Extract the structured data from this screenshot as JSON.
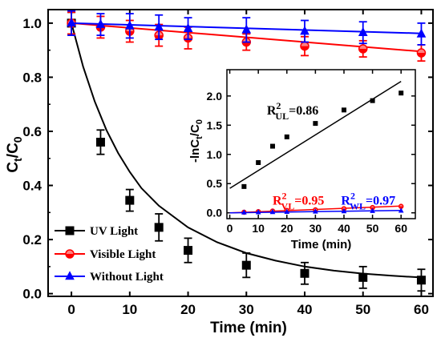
{
  "chart_data": [
    {
      "type": "scatter",
      "xlabel": "Time (min)",
      "ylabel": "C_t/C_0",
      "ylabel_parts": {
        "main": "C",
        "sub1": "t",
        "slash": "/C",
        "sub2": "0"
      },
      "xlim": [
        -4,
        62
      ],
      "ylim": [
        -0.01,
        1.05
      ],
      "xticks": [
        0,
        10,
        20,
        30,
        40,
        50,
        60
      ],
      "yticks": [
        0.0,
        0.2,
        0.4,
        0.6,
        0.8,
        1.0
      ],
      "xtick_labels": [
        "0",
        "10",
        "20",
        "30",
        "40",
        "50",
        "60"
      ],
      "ytick_labels": [
        "0.0",
        "0.2",
        "0.4",
        "0.6",
        "0.8",
        "1.0"
      ],
      "legend_position": "bottom-left",
      "series": [
        {
          "name": "UV Light",
          "color": "#000000",
          "marker": "square",
          "x": [
            0,
            5,
            10,
            15,
            20,
            30,
            40,
            50,
            60
          ],
          "y": [
            1.0,
            0.56,
            0.345,
            0.245,
            0.16,
            0.105,
            0.075,
            0.06,
            0.05
          ],
          "err": [
            0.04,
            0.045,
            0.04,
            0.05,
            0.045,
            0.045,
            0.04,
            0.04,
            0.04
          ],
          "fit": [
            [
              0,
              1.0
            ],
            [
              2,
              0.84
            ],
            [
              4,
              0.71
            ],
            [
              6,
              0.605
            ],
            [
              8,
              0.52
            ],
            [
              10,
              0.45
            ],
            [
              12,
              0.39
            ],
            [
              15,
              0.325
            ],
            [
              20,
              0.245
            ],
            [
              25,
              0.19
            ],
            [
              30,
              0.15
            ],
            [
              35,
              0.122
            ],
            [
              40,
              0.1
            ],
            [
              45,
              0.085
            ],
            [
              50,
              0.074
            ],
            [
              55,
              0.066
            ],
            [
              60,
              0.06
            ]
          ]
        },
        {
          "name": "Visible Light",
          "color": "#ff0000",
          "marker": "circle",
          "x": [
            0,
            5,
            10,
            15,
            20,
            30,
            40,
            50,
            60
          ],
          "y": [
            1.0,
            0.985,
            0.97,
            0.955,
            0.945,
            0.93,
            0.915,
            0.905,
            0.89
          ],
          "err": [
            0.04,
            0.04,
            0.04,
            0.04,
            0.04,
            0.03,
            0.035,
            0.03,
            0.03
          ],
          "fit": [
            [
              0,
              1.0
            ],
            [
              60,
              0.895
            ]
          ]
        },
        {
          "name": "Without Light",
          "color": "#0000ff",
          "marker": "triangle",
          "x": [
            0,
            5,
            10,
            15,
            20,
            30,
            40,
            50,
            60
          ],
          "y": [
            1.0,
            0.995,
            0.99,
            0.985,
            0.98,
            0.975,
            0.97,
            0.965,
            0.96
          ],
          "err": [
            0.045,
            0.04,
            0.045,
            0.045,
            0.04,
            0.045,
            0.04,
            0.04,
            0.04
          ],
          "fit": [
            [
              0,
              1.0
            ],
            [
              60,
              0.962
            ]
          ]
        }
      ]
    },
    {
      "type": "scatter",
      "role": "inset",
      "xlabel": "Time (min)",
      "ylabel": "-lnC_t/C_0",
      "ylabel_parts": {
        "main": "-lnC",
        "sub1": "t",
        "slash": "/C",
        "sub2": "0"
      },
      "xlim": [
        -1,
        65
      ],
      "ylim": [
        -0.1,
        2.45
      ],
      "xticks": [
        0,
        10,
        20,
        30,
        40,
        50,
        60
      ],
      "yticks": [
        0.0,
        0.5,
        1.0,
        1.5,
        2.0
      ],
      "xtick_labels": [
        "0",
        "10",
        "20",
        "30",
        "40",
        "50",
        "60"
      ],
      "ytick_labels": [
        "0.0",
        "0.5",
        "1.0",
        "1.5",
        "2.0"
      ],
      "annotations": [
        {
          "id": "ul",
          "base": "R",
          "sup": "2",
          "sub": "UL",
          "value": "=0.86",
          "color": "#000000",
          "x": 13,
          "y": 1.68
        },
        {
          "id": "vl",
          "base": "R",
          "sup": "2",
          "sub": "VL",
          "value": "=0.95",
          "color": "#ff0000",
          "x": 15,
          "y": 0.14
        },
        {
          "id": "wl",
          "base": "R",
          "sup": "2",
          "sub": "WL",
          "value": "=0.97",
          "color": "#0000ff",
          "x": 39,
          "y": 0.14
        }
      ],
      "series": [
        {
          "name": "UV Light",
          "color": "#000000",
          "marker": "square",
          "x": [
            5,
            10,
            15,
            20,
            30,
            40,
            50,
            60
          ],
          "y": [
            0.45,
            0.86,
            1.14,
            1.3,
            1.53,
            1.76,
            1.92,
            2.05
          ],
          "fit": [
            [
              0,
              0.42
            ],
            [
              60,
              2.25
            ]
          ]
        },
        {
          "name": "Visible Light",
          "color": "#ff0000",
          "marker": "circle",
          "x": [
            5,
            10,
            15,
            20,
            30,
            40,
            50,
            60
          ],
          "y": [
            0.01,
            0.02,
            0.03,
            0.04,
            0.05,
            0.07,
            0.09,
            0.11
          ],
          "fit": [
            [
              0,
              0.0
            ],
            [
              60,
              0.115
            ]
          ]
        },
        {
          "name": "Without Light",
          "color": "#0000ff",
          "marker": "triangle",
          "x": [
            5,
            10,
            15,
            20,
            30,
            40,
            50,
            60
          ],
          "y": [
            0.005,
            0.008,
            0.012,
            0.015,
            0.02,
            0.025,
            0.03,
            0.035
          ],
          "fit": [
            [
              0,
              0.0
            ],
            [
              60,
              0.04
            ]
          ]
        }
      ]
    }
  ]
}
